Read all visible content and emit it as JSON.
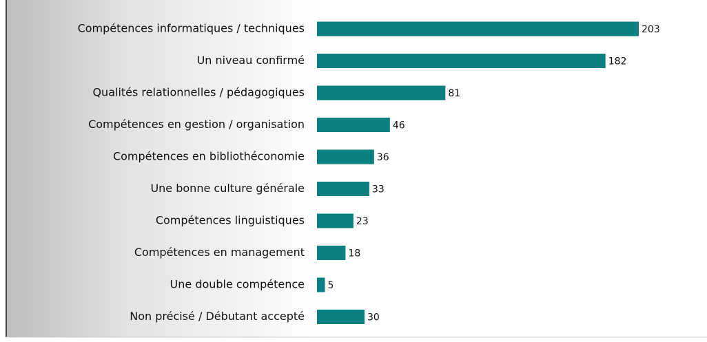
{
  "chart_data": {
    "type": "hbar",
    "categories": [
      "Compétences informatiques / techniques",
      "Un niveau confirmé",
      "Qualités relationnelles / pédagogiques",
      "Compétences en gestion / organisation",
      "Compétences en bibliothéconomie",
      "Une bonne culture générale",
      "Compétences linguistiques",
      "Compétences en management",
      "Une double compétence",
      "Non précisé / Débutant accepté"
    ],
    "values": [
      203,
      182,
      81,
      46,
      36,
      33,
      23,
      18,
      5,
      30
    ],
    "color": "#0b8080"
  }
}
